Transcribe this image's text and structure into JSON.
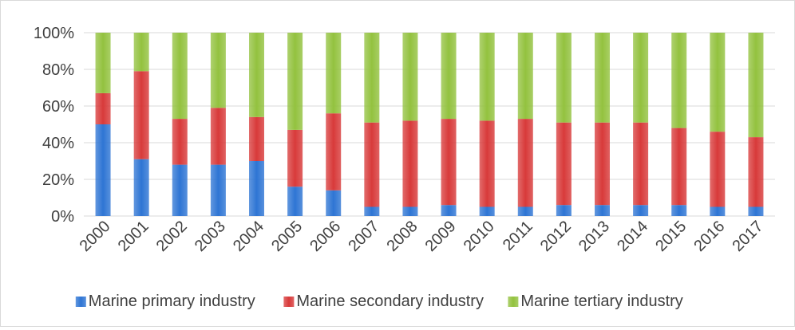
{
  "chart_data": {
    "type": "bar",
    "stacked": true,
    "percent": true,
    "categories": [
      "2000",
      "2001",
      "2002",
      "2003",
      "2004",
      "2005",
      "2006",
      "2007",
      "2008",
      "2009",
      "2010",
      "2011",
      "2012",
      "2013",
      "2014",
      "2015",
      "2016",
      "2017"
    ],
    "series": [
      {
        "name": "Marine primary industry",
        "color": "#2e75d4",
        "values": [
          50,
          31,
          28,
          28,
          30,
          16,
          14,
          5,
          5,
          6,
          5,
          5,
          6,
          6,
          6,
          6,
          5,
          5
        ]
      },
      {
        "name": "Marine secondary industry",
        "color": "#d83a3a",
        "values": [
          17,
          48,
          25,
          31,
          24,
          31,
          42,
          46,
          47,
          47,
          47,
          48,
          45,
          45,
          45,
          42,
          41,
          38
        ]
      },
      {
        "name": "Marine tertiary industry",
        "color": "#93c23f",
        "values": [
          33,
          21,
          47,
          41,
          46,
          53,
          44,
          49,
          48,
          47,
          48,
          47,
          49,
          49,
          49,
          52,
          54,
          57
        ]
      }
    ],
    "yticks": [
      "0%",
      "20%",
      "40%",
      "60%",
      "80%",
      "100%"
    ],
    "ylim": [
      0,
      100
    ],
    "grid": true,
    "legend_position": "bottom"
  }
}
